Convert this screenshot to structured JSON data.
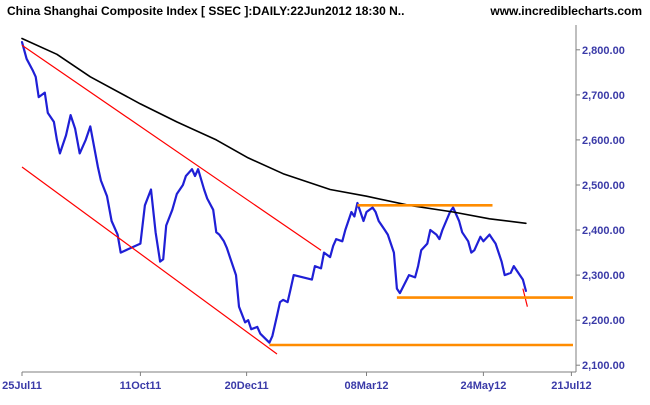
{
  "header": {
    "title": "China Shanghai Composite Index [ SSEC ]:DAILY:22Jun2012 18:30 N..",
    "url": "www.incrediblecharts.com"
  },
  "colors": {
    "background": "#ffffff",
    "plot_background": "#ffffff",
    "frame": "#7f7f7f",
    "axis_text": "#3a3aa8",
    "price_line": "#1f1fd6",
    "moving_average": "#000000",
    "trend_lines": "#ff0000",
    "support_resistance": "#ff8c00"
  },
  "chart_data": {
    "type": "line",
    "x_axis": {
      "tick_labels": [
        "25Jul11",
        "11Oct11",
        "20Dec11",
        "08Mar12",
        "24May12",
        "21Jul12"
      ],
      "tick_dates": [
        "2011-07-25",
        "2011-10-11",
        "2011-12-20",
        "2012-03-08",
        "2012-05-24",
        "2012-07-21"
      ],
      "range": [
        "2011-07-25",
        "2012-07-24"
      ]
    },
    "y_axis": {
      "position": "right",
      "tick_labels": [
        "2,100.00",
        "2,200.00",
        "2,300.00",
        "2,400.00",
        "2,500.00",
        "2,600.00",
        "2,700.00",
        "2,800.00"
      ],
      "tick_values": [
        2100,
        2200,
        2300,
        2400,
        2500,
        2600,
        2700,
        2800
      ],
      "range": [
        2085,
        2855
      ]
    },
    "grid": false,
    "legend": "none",
    "series": [
      {
        "role": "price",
        "points": [
          [
            "2011-07-25",
            2817
          ],
          [
            "2011-07-28",
            2780
          ],
          [
            "2011-08-01",
            2755
          ],
          [
            "2011-08-03",
            2740
          ],
          [
            "2011-08-05",
            2695
          ],
          [
            "2011-08-09",
            2705
          ],
          [
            "2011-08-11",
            2660
          ],
          [
            "2011-08-15",
            2640
          ],
          [
            "2011-08-17",
            2600
          ],
          [
            "2011-08-19",
            2570
          ],
          [
            "2011-08-23",
            2610
          ],
          [
            "2011-08-26",
            2655
          ],
          [
            "2011-08-29",
            2625
          ],
          [
            "2011-09-01",
            2570
          ],
          [
            "2011-09-05",
            2600
          ],
          [
            "2011-09-08",
            2630
          ],
          [
            "2011-09-13",
            2540
          ],
          [
            "2011-09-15",
            2510
          ],
          [
            "2011-09-19",
            2475
          ],
          [
            "2011-09-22",
            2420
          ],
          [
            "2011-09-26",
            2390
          ],
          [
            "2011-09-28",
            2350
          ],
          [
            "2011-10-11",
            2370
          ],
          [
            "2011-10-14",
            2455
          ],
          [
            "2011-10-18",
            2490
          ],
          [
            "2011-10-21",
            2395
          ],
          [
            "2011-10-24",
            2330
          ],
          [
            "2011-10-26",
            2335
          ],
          [
            "2011-10-28",
            2410
          ],
          [
            "2011-11-01",
            2445
          ],
          [
            "2011-11-04",
            2480
          ],
          [
            "2011-11-08",
            2500
          ],
          [
            "2011-11-10",
            2520
          ],
          [
            "2011-11-14",
            2535
          ],
          [
            "2011-11-16",
            2520
          ],
          [
            "2011-11-18",
            2535
          ],
          [
            "2011-11-22",
            2490
          ],
          [
            "2011-11-24",
            2470
          ],
          [
            "2011-11-28",
            2445
          ],
          [
            "2011-11-30",
            2395
          ],
          [
            "2011-12-02",
            2390
          ],
          [
            "2011-12-05",
            2375
          ],
          [
            "2011-12-07",
            2360
          ],
          [
            "2011-12-09",
            2340
          ],
          [
            "2011-12-13",
            2300
          ],
          [
            "2011-12-15",
            2230
          ],
          [
            "2011-12-19",
            2195
          ],
          [
            "2011-12-21",
            2200
          ],
          [
            "2011-12-23",
            2180
          ],
          [
            "2011-12-27",
            2185
          ],
          [
            "2011-12-29",
            2170
          ],
          [
            "2012-01-04",
            2150
          ],
          [
            "2012-01-06",
            2165
          ],
          [
            "2012-01-09",
            2210
          ],
          [
            "2012-01-11",
            2240
          ],
          [
            "2012-01-13",
            2245
          ],
          [
            "2012-01-16",
            2240
          ],
          [
            "2012-01-18",
            2270
          ],
          [
            "2012-01-20",
            2300
          ],
          [
            "2012-02-01",
            2290
          ],
          [
            "2012-02-03",
            2320
          ],
          [
            "2012-02-07",
            2315
          ],
          [
            "2012-02-09",
            2350
          ],
          [
            "2012-02-13",
            2340
          ],
          [
            "2012-02-15",
            2365
          ],
          [
            "2012-02-17",
            2380
          ],
          [
            "2012-02-21",
            2375
          ],
          [
            "2012-02-23",
            2400
          ],
          [
            "2012-02-27",
            2440
          ],
          [
            "2012-02-29",
            2430
          ],
          [
            "2012-03-02",
            2460
          ],
          [
            "2012-03-06",
            2420
          ],
          [
            "2012-03-08",
            2440
          ],
          [
            "2012-03-12",
            2450
          ],
          [
            "2012-03-14",
            2440
          ],
          [
            "2012-03-16",
            2420
          ],
          [
            "2012-03-20",
            2400
          ],
          [
            "2012-03-22",
            2390
          ],
          [
            "2012-03-26",
            2350
          ],
          [
            "2012-03-28",
            2270
          ],
          [
            "2012-03-30",
            2260
          ],
          [
            "2012-04-05",
            2300
          ],
          [
            "2012-04-09",
            2295
          ],
          [
            "2012-04-11",
            2320
          ],
          [
            "2012-04-13",
            2355
          ],
          [
            "2012-04-17",
            2370
          ],
          [
            "2012-04-19",
            2400
          ],
          [
            "2012-04-23",
            2390
          ],
          [
            "2012-04-25",
            2380
          ],
          [
            "2012-04-27",
            2400
          ],
          [
            "2012-05-02",
            2440
          ],
          [
            "2012-05-04",
            2450
          ],
          [
            "2012-05-08",
            2420
          ],
          [
            "2012-05-10",
            2395
          ],
          [
            "2012-05-14",
            2375
          ],
          [
            "2012-05-16",
            2350
          ],
          [
            "2012-05-18",
            2355
          ],
          [
            "2012-05-22",
            2385
          ],
          [
            "2012-05-24",
            2375
          ],
          [
            "2012-05-28",
            2390
          ],
          [
            "2012-05-30",
            2380
          ],
          [
            "2012-06-01",
            2370
          ],
          [
            "2012-06-05",
            2330
          ],
          [
            "2012-06-07",
            2300
          ],
          [
            "2012-06-11",
            2305
          ],
          [
            "2012-06-13",
            2320
          ],
          [
            "2012-06-15",
            2310
          ],
          [
            "2012-06-19",
            2290
          ],
          [
            "2012-06-21",
            2265
          ]
        ]
      },
      {
        "role": "moving-average",
        "points": [
          [
            "2011-07-25",
            2825
          ],
          [
            "2011-08-17",
            2790
          ],
          [
            "2011-09-08",
            2740
          ],
          [
            "2011-10-11",
            2680
          ],
          [
            "2011-11-04",
            2640
          ],
          [
            "2011-11-30",
            2600
          ],
          [
            "2011-12-21",
            2560
          ],
          [
            "2012-01-13",
            2525
          ],
          [
            "2012-02-13",
            2490
          ],
          [
            "2012-03-08",
            2475
          ],
          [
            "2012-04-05",
            2455
          ],
          [
            "2012-05-04",
            2440
          ],
          [
            "2012-05-28",
            2425
          ],
          [
            "2012-06-21",
            2415
          ]
        ]
      }
    ],
    "annotations": [
      {
        "kind": "trend-line",
        "role": "upper-channel",
        "from": [
          "2011-07-25",
          2810
        ],
        "to": [
          "2012-02-07",
          2355
        ]
      },
      {
        "kind": "trend-line",
        "role": "lower-channel",
        "from": [
          "2011-07-25",
          2540
        ],
        "to": [
          "2012-01-09",
          2125
        ]
      },
      {
        "kind": "trend-line",
        "role": "latest-drop",
        "from": [
          "2012-06-19",
          2270
        ],
        "to": [
          "2012-06-22",
          2230
        ]
      },
      {
        "kind": "horizontal-line",
        "role": "resistance",
        "from": [
          "2012-03-02",
          2455
        ],
        "to": [
          "2012-05-30",
          2455
        ]
      },
      {
        "kind": "horizontal-line",
        "role": "support-upper",
        "from": [
          "2012-03-28",
          2250
        ],
        "to": [
          "2012-07-22",
          2250
        ]
      },
      {
        "kind": "horizontal-line",
        "role": "support-lower",
        "from": [
          "2012-01-04",
          2145
        ],
        "to": [
          "2012-07-22",
          2145
        ]
      }
    ]
  }
}
